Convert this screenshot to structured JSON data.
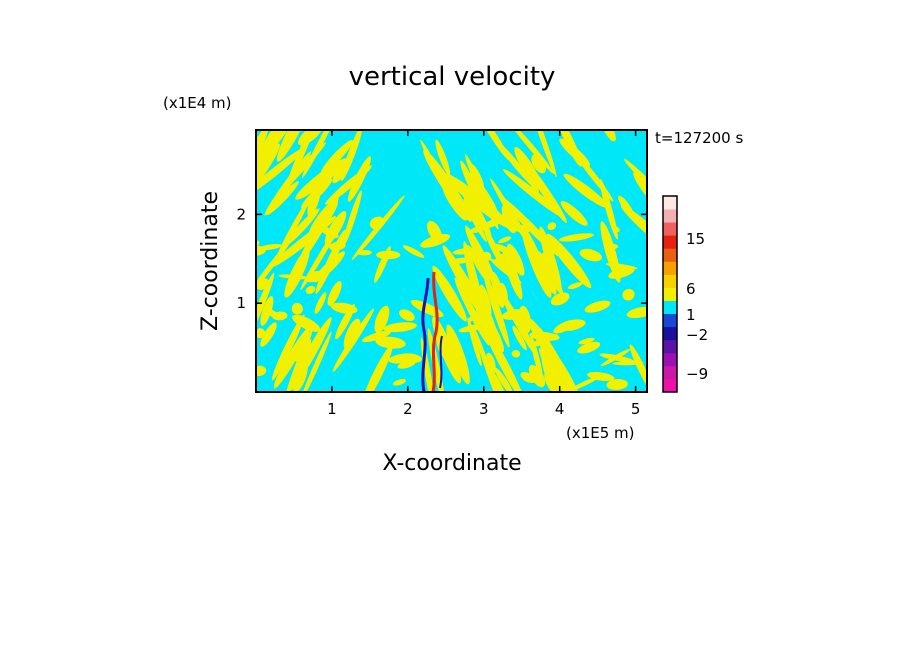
{
  "chart_data": {
    "type": "heatmap",
    "title": "vertical velocity",
    "xlabel": "X-coordinate",
    "ylabel": "Z-coordinate",
    "x_unit": "(x1E5 m)",
    "y_unit": "(x1E4 m)",
    "time_label": "t=127200 s",
    "xlim": [
      0,
      5.15
    ],
    "ylim": [
      0,
      2.95
    ],
    "x_ticks": [
      1,
      2,
      3,
      4,
      5
    ],
    "y_ticks": [
      1,
      2
    ],
    "colorbar": {
      "labels": [
        {
          "text": "15",
          "value": 15
        },
        {
          "text": "6",
          "value": 6
        },
        {
          "text": "1",
          "value": 1
        },
        {
          "text": "-2",
          "value": -2
        },
        {
          "text": "-9",
          "value": -9
        }
      ],
      "levels": [
        {
          "color": "#ee10a8"
        },
        {
          "color": "#cc18a8"
        },
        {
          "color": "#9a10b0"
        },
        {
          "color": "#5a14a8"
        },
        {
          "color": "#1a10a0"
        },
        {
          "color": "#1848d8"
        },
        {
          "color": "#00e8f8"
        },
        {
          "color": "#f0f000"
        },
        {
          "color": "#f8d000"
        },
        {
          "color": "#f8a000"
        },
        {
          "color": "#e86010"
        },
        {
          "color": "#e82010"
        },
        {
          "color": "#f06060"
        },
        {
          "color": "#f4b0b0"
        },
        {
          "color": "#fce8e4"
        }
      ]
    },
    "field_colors": {
      "background": "#00e8f8",
      "updraft_weak": "#f0f000",
      "downdraft_strong": "#2010b0",
      "updraft_strong": "#e82010"
    }
  }
}
